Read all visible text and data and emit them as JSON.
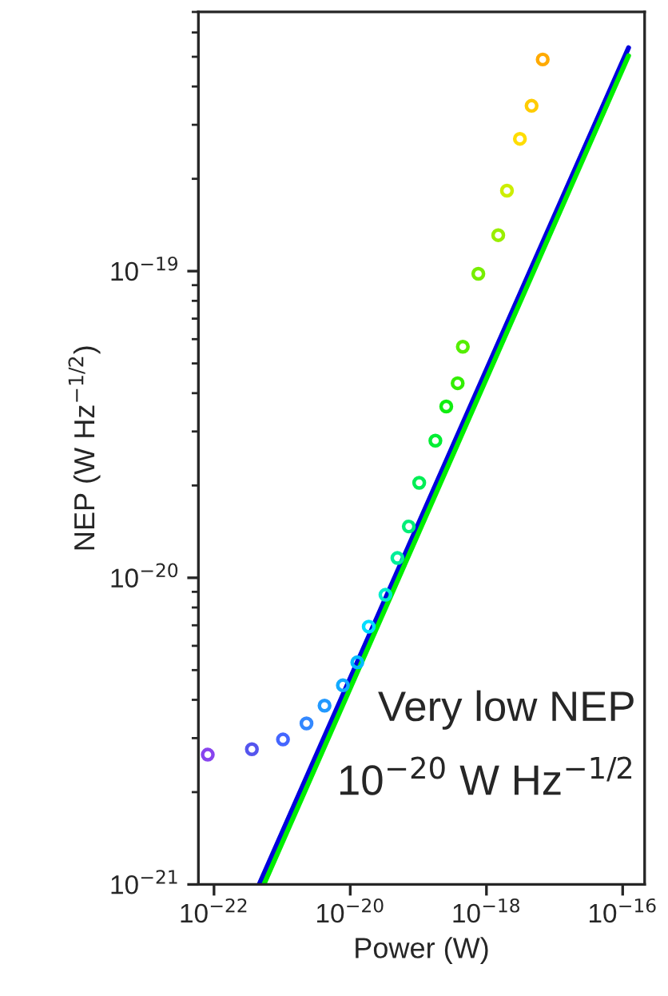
{
  "chart_data": {
    "type": "scatter",
    "xlabel": "Power (W)",
    "ylabel": "NEP (W Hz$^{−1/2}$)",
    "log": "xy",
    "grid": false,
    "legend": false,
    "xlim": [
      5.9e-23,
      2.1e-16
    ],
    "ylim": [
      1e-21,
      7e-19
    ],
    "xticks": [
      {
        "value": 1e-22,
        "label": "10$^{−22}$"
      },
      {
        "value": 1e-20,
        "label": "10$^{−20}$"
      },
      {
        "value": 1e-18,
        "label": "10$^{−18}$"
      },
      {
        "value": 1e-16,
        "label": "10$^{−16}$"
      }
    ],
    "yticks": [
      {
        "value": 1e-21,
        "label": "10$^{−21}$"
      },
      {
        "value": 1e-20,
        "label": "10$^{−20}$"
      },
      {
        "value": 1e-19,
        "label": "10$^{−19}$"
      }
    ],
    "annotations": [
      "Very low NEP",
      "10$^{−20}$ W Hz$^{−1/2}$"
    ],
    "series": [
      {
        "marker": "circle",
        "x": [
          8.1e-23,
          3.6e-22,
          1.03e-21,
          2.28e-21,
          4.2e-21,
          7.8e-21,
          1.27e-20,
          1.87e-20,
          3.29e-20,
          4.93e-20,
          7.24e-20,
          1.03e-19,
          1.78e-19,
          2.57e-19,
          3.78e-19,
          4.5e-19,
          7.6e-19,
          1.49e-18,
          2e-18,
          3.1e-18,
          4.6e-18,
          6.7e-18
        ],
        "values": [
          2.65e-21,
          2.76e-21,
          2.97e-21,
          3.35e-21,
          3.83e-21,
          4.46e-21,
          5.3e-21,
          6.93e-21,
          8.8e-21,
          1.16e-20,
          1.47e-20,
          2.04e-20,
          2.8e-20,
          3.62e-20,
          4.31e-20,
          5.67e-20,
          9.8e-20,
          1.31e-19,
          1.83e-19,
          2.7e-19,
          3.46e-19,
          4.9e-19
        ],
        "colors": [
          "#8844ee",
          "#5555ee",
          "#4466ff",
          "#3388ff",
          "#2299ff",
          "#11aaff",
          "#00bbff",
          "#00ddff",
          "#00eecc",
          "#00ee99",
          "#00ee77",
          "#00ee55",
          "#00ee33",
          "#11ee11",
          "#33ee00",
          "#55ee00",
          "#77ee00",
          "#99ee00",
          "#ccee00",
          "#ffdd00",
          "#ffcc00",
          "#ffaa00"
        ]
      },
      {
        "type": "line",
        "marker": "none",
        "line_style": "solid",
        "color": "#0000dd",
        "x": [
          4.6e-22,
          1.22e-16
        ],
        "values": [
          1e-21,
          5.35e-19
        ]
      },
      {
        "type": "line",
        "marker": "none",
        "line_style": "solid",
        "color": "#00ee00",
        "x": [
          5.4e-22,
          1.22e-16
        ],
        "values": [
          1e-21,
          5.04e-19
        ]
      }
    ]
  }
}
